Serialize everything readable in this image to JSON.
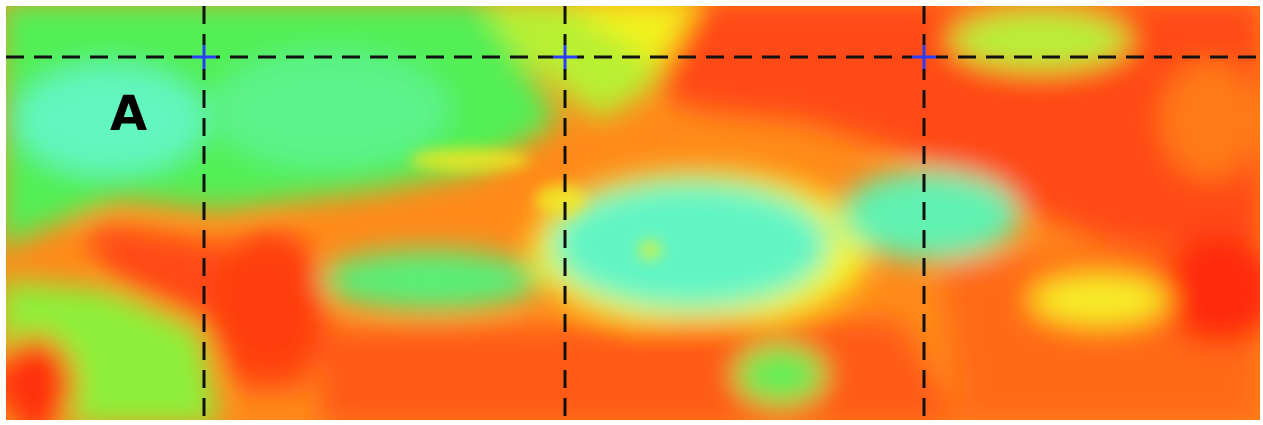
{
  "map": {
    "label": "A"
  }
}
